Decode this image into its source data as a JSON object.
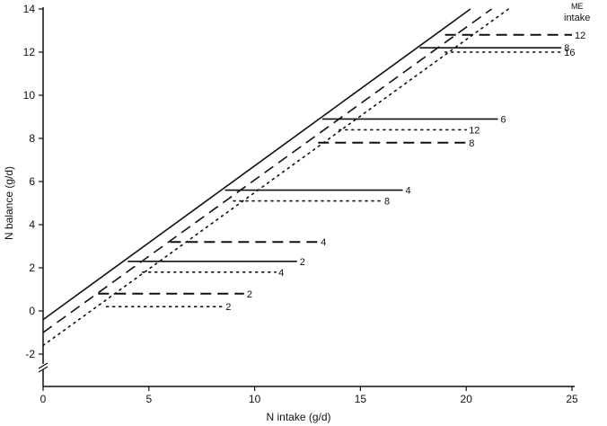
{
  "chart_data": {
    "type": "line",
    "xlabel": "N intake (g/d)",
    "ylabel": "N balance (g/d)",
    "xlim": [
      0,
      25
    ],
    "ylim": [
      -3.5,
      14
    ],
    "xticks": [
      0,
      5,
      10,
      15,
      20,
      25
    ],
    "yticks": [
      -2,
      0,
      2,
      4,
      6,
      8,
      10,
      12,
      14
    ],
    "y_axis_break": true,
    "grid": false,
    "legend": {
      "title": [
        "ME",
        "intake"
      ],
      "placement": "top-right"
    },
    "series": [
      {
        "style": "solid",
        "diagonal": [
          [
            0,
            -0.4
          ],
          [
            20.2,
            14
          ]
        ],
        "plateaus": [
          {
            "label": "2",
            "x": [
              4.0,
              12.0
            ],
            "y": 2.3
          },
          {
            "label": "4",
            "x": [
              8.6,
              17.0
            ],
            "y": 5.6
          },
          {
            "label": "6",
            "x": [
              13.2,
              21.5
            ],
            "y": 8.9
          },
          {
            "label": "8",
            "x": [
              17.8,
              24.5
            ],
            "y": 12.2
          }
        ]
      },
      {
        "style": "dashed",
        "diagonal": [
          [
            0,
            -1.0
          ],
          [
            21.2,
            14
          ]
        ],
        "plateaus": [
          {
            "label": "2",
            "x": [
              2.6,
              9.5
            ],
            "y": 0.8
          },
          {
            "label": "4",
            "x": [
              6.0,
              13.0
            ],
            "y": 3.2
          },
          {
            "label": "8",
            "x": [
              13.0,
              20.0
            ],
            "y": 7.8
          },
          {
            "label": "12",
            "x": [
              19.0,
              25.0
            ],
            "y": 12.8
          }
        ]
      },
      {
        "style": "dotted",
        "diagonal": [
          [
            0,
            -1.6
          ],
          [
            22.0,
            14
          ]
        ],
        "plateaus": [
          {
            "label": "2",
            "x": [
              3.0,
              8.5
            ],
            "y": 0.2
          },
          {
            "label": "4",
            "x": [
              4.7,
              11.0
            ],
            "y": 1.8
          },
          {
            "label": "8",
            "x": [
              9.0,
              16.0
            ],
            "y": 5.1
          },
          {
            "label": "12",
            "x": [
              14.0,
              20.0
            ],
            "y": 8.4
          },
          {
            "label": "16",
            "x": [
              19.0,
              24.5
            ],
            "y": 12.0
          }
        ]
      }
    ]
  }
}
